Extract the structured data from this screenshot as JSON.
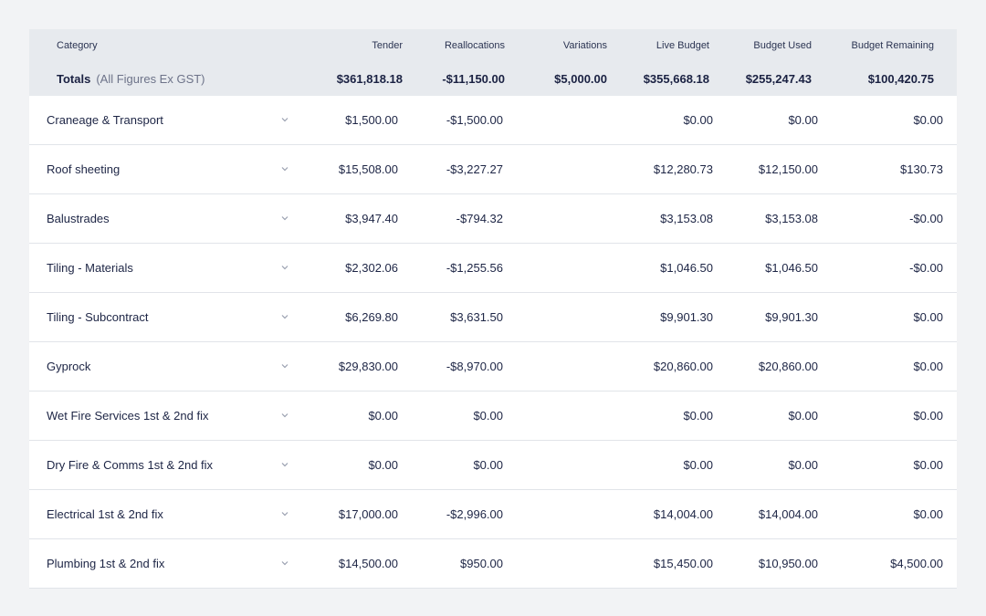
{
  "header": {
    "columns": {
      "category": "Category",
      "tender": "Tender",
      "reallocations": "Reallocations",
      "variations": "Variations",
      "live_budget": "Live Budget",
      "budget_used": "Budget Used",
      "budget_remaining": "Budget Remaining"
    },
    "totals": {
      "label": "Totals",
      "sublabel": "(All Figures Ex GST)",
      "tender": "$361,818.18",
      "reallocations": "-$11,150.00",
      "variations": "$5,000.00",
      "live_budget": "$355,668.18",
      "budget_used": "$255,247.43",
      "budget_remaining": "$100,420.75"
    }
  },
  "rows": [
    {
      "category": "Craneage & Transport",
      "tender": "$1,500.00",
      "reallocations": "-$1,500.00",
      "variations": "",
      "live_budget": "$0.00",
      "budget_used": "$0.00",
      "budget_remaining": "$0.00"
    },
    {
      "category": "Roof sheeting",
      "tender": "$15,508.00",
      "reallocations": "-$3,227.27",
      "variations": "",
      "live_budget": "$12,280.73",
      "budget_used": "$12,150.00",
      "budget_remaining": "$130.73"
    },
    {
      "category": "Balustrades",
      "tender": "$3,947.40",
      "reallocations": "-$794.32",
      "variations": "",
      "live_budget": "$3,153.08",
      "budget_used": "$3,153.08",
      "budget_remaining": "-$0.00"
    },
    {
      "category": "Tiling - Materials",
      "tender": "$2,302.06",
      "reallocations": "-$1,255.56",
      "variations": "",
      "live_budget": "$1,046.50",
      "budget_used": "$1,046.50",
      "budget_remaining": "-$0.00"
    },
    {
      "category": "Tiling - Subcontract",
      "tender": "$6,269.80",
      "reallocations": "$3,631.50",
      "variations": "",
      "live_budget": "$9,901.30",
      "budget_used": "$9,901.30",
      "budget_remaining": "$0.00"
    },
    {
      "category": "Gyprock",
      "tender": "$29,830.00",
      "reallocations": "-$8,970.00",
      "variations": "",
      "live_budget": "$20,860.00",
      "budget_used": "$20,860.00",
      "budget_remaining": "$0.00"
    },
    {
      "category": "Wet Fire Services 1st & 2nd fix",
      "tender": "$0.00",
      "reallocations": "$0.00",
      "variations": "",
      "live_budget": "$0.00",
      "budget_used": "$0.00",
      "budget_remaining": "$0.00"
    },
    {
      "category": "Dry Fire & Comms 1st & 2nd fix",
      "tender": "$0.00",
      "reallocations": "$0.00",
      "variations": "",
      "live_budget": "$0.00",
      "budget_used": "$0.00",
      "budget_remaining": "$0.00"
    },
    {
      "category": "Electrical 1st & 2nd fix",
      "tender": "$17,000.00",
      "reallocations": "-$2,996.00",
      "variations": "",
      "live_budget": "$14,004.00",
      "budget_used": "$14,004.00",
      "budget_remaining": "$0.00"
    },
    {
      "category": "Plumbing 1st & 2nd fix",
      "tender": "$14,500.00",
      "reallocations": "$950.00",
      "variations": "",
      "live_budget": "$15,450.00",
      "budget_used": "$10,950.00",
      "budget_remaining": "$4,500.00"
    }
  ],
  "icons": {
    "row_expand": "chevron-down-icon"
  }
}
